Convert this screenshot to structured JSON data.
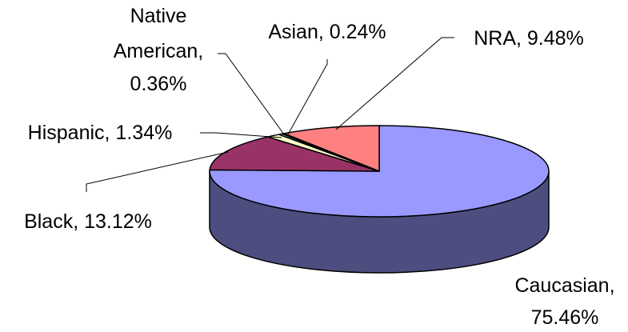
{
  "chart_data": {
    "type": "pie",
    "three_d": true,
    "legend": "none",
    "series": [
      {
        "name": "Caucasian",
        "value": 75.46,
        "display": "Caucasian, 75.46%",
        "color": "#9999FF"
      },
      {
        "name": "Black",
        "value": 13.12,
        "display": "Black, 13.12%",
        "color": "#993366"
      },
      {
        "name": "Hispanic",
        "value": 1.34,
        "display": "Hispanic, 1.34%",
        "color": "#FFFFCC"
      },
      {
        "name": "Native American",
        "value": 0.36,
        "display": "Native American, 0.36%",
        "color": "#CCFFFF"
      },
      {
        "name": "Asian",
        "value": 0.24,
        "display": "Asian, 0.24%",
        "color": "#660066"
      },
      {
        "name": "NRA",
        "value": 9.48,
        "display": "NRA, 9.48%",
        "color": "#FF8080"
      }
    ]
  }
}
